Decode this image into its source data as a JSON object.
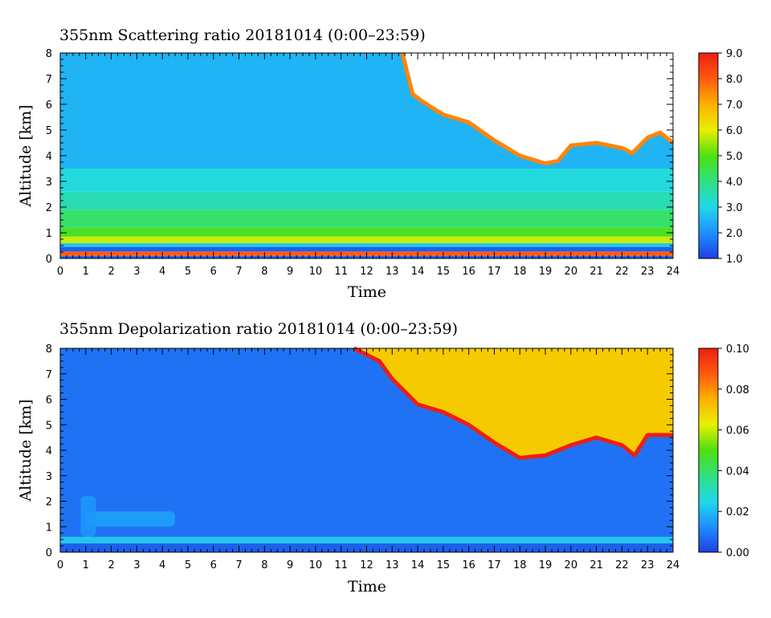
{
  "chart_data": [
    {
      "type": "heatmap",
      "id": "scattering",
      "title": "355nm Scattering ratio  20181014 (0:00–23:59)",
      "xlabel": "Time",
      "ylabel": "Altitude [km]",
      "xlim": [
        0,
        24
      ],
      "ylim": [
        0,
        8
      ],
      "x_ticks": [
        "0",
        "1",
        "2",
        "3",
        "4",
        "5",
        "6",
        "7",
        "8",
        "9",
        "10",
        "11",
        "12",
        "13",
        "14",
        "15",
        "16",
        "17",
        "18",
        "19",
        "20",
        "21",
        "22",
        "23",
        "24"
      ],
      "y_ticks": [
        "0",
        "1",
        "2",
        "3",
        "4",
        "5",
        "6",
        "7",
        "8"
      ],
      "colorbar": {
        "range": [
          1.0,
          9.0
        ],
        "ticks": [
          "1.0",
          "2.0",
          "3.0",
          "4.0",
          "5.0",
          "6.0",
          "7.0",
          "8.0",
          "9.0"
        ],
        "colors": [
          "#1f3fe0",
          "#1f8fff",
          "#20d8e8",
          "#30e080",
          "#50e010",
          "#e8f000",
          "#ffb000",
          "#ff5a10",
          "#ee1e10"
        ]
      },
      "color_bands": [
        {
          "z_top": 0.1,
          "value": 1.5
        },
        {
          "z_top": 0.27,
          "value": 8.0
        },
        {
          "z_top": 0.45,
          "value": 1.4
        },
        {
          "z_top": 0.6,
          "value": 2.8
        },
        {
          "z_top": 0.85,
          "value": 5.8
        },
        {
          "z_top": 1.2,
          "value": 4.8
        },
        {
          "z_top": 1.9,
          "value": 4.2
        },
        {
          "z_top": 2.6,
          "value": 3.5
        },
        {
          "z_top": 3.5,
          "value": 3.1
        },
        {
          "z_top": 8.0,
          "value": 2.5
        }
      ],
      "cloud_region": {
        "value_inside": "above_range",
        "edge_value": 7.5,
        "base_km": [
          [
            13.4,
            8.0
          ],
          [
            13.8,
            6.4
          ],
          [
            14.2,
            6.1
          ],
          [
            15.0,
            5.6
          ],
          [
            16.0,
            5.3
          ],
          [
            17.0,
            4.6
          ],
          [
            18.0,
            4.0
          ],
          [
            19.0,
            3.7
          ],
          [
            19.5,
            3.8
          ],
          [
            20.0,
            4.4
          ],
          [
            21.0,
            4.5
          ],
          [
            22.0,
            4.3
          ],
          [
            22.4,
            4.1
          ],
          [
            23.0,
            4.7
          ],
          [
            23.5,
            4.9
          ],
          [
            24.0,
            4.5
          ]
        ]
      },
      "grid": false,
      "legend": "colorbar-right"
    },
    {
      "type": "heatmap",
      "id": "depolarization",
      "title": "355nm Depolarization ratio  20181014 (0:00–23:59)",
      "xlabel": "Time",
      "ylabel": "Altitude [km]",
      "xlim": [
        0,
        24
      ],
      "ylim": [
        0,
        8
      ],
      "x_ticks": [
        "0",
        "1",
        "2",
        "3",
        "4",
        "5",
        "6",
        "7",
        "8",
        "9",
        "10",
        "11",
        "12",
        "13",
        "14",
        "15",
        "16",
        "17",
        "18",
        "19",
        "20",
        "21",
        "22",
        "23",
        "24"
      ],
      "y_ticks": [
        "0",
        "1",
        "2",
        "3",
        "4",
        "5",
        "6",
        "7",
        "8"
      ],
      "colorbar": {
        "range": [
          0.0,
          0.1
        ],
        "ticks": [
          "0.00",
          "0.02",
          "0.04",
          "0.06",
          "0.08",
          "0.10"
        ],
        "colors": [
          "#1f3fe0",
          "#1f8fff",
          "#20d8e8",
          "#30e080",
          "#50e010",
          "#e8f000",
          "#ffb000",
          "#ff5a10",
          "#ee1e10"
        ]
      },
      "color_bands": [
        {
          "z_top": 0.35,
          "value": 0.005
        },
        {
          "z_top": 0.6,
          "value": 0.022
        },
        {
          "z_top": 8.0,
          "value": 0.008
        }
      ],
      "patches": [
        {
          "x": [
            1.0,
            4.5
          ],
          "z": [
            1.0,
            1.6
          ],
          "value": 0.016
        },
        {
          "x": [
            0.8,
            1.4
          ],
          "z": [
            0.6,
            2.2
          ],
          "value": 0.014
        }
      ],
      "cloud_region": {
        "value_inside": 0.07,
        "edge_value": 0.1,
        "base_km": [
          [
            11.5,
            8.0
          ],
          [
            12.5,
            7.5
          ],
          [
            13.0,
            6.8
          ],
          [
            14.0,
            5.8
          ],
          [
            15.0,
            5.5
          ],
          [
            16.0,
            5.0
          ],
          [
            17.0,
            4.3
          ],
          [
            18.0,
            3.7
          ],
          [
            19.0,
            3.8
          ],
          [
            20.0,
            4.2
          ],
          [
            21.0,
            4.5
          ],
          [
            22.0,
            4.2
          ],
          [
            22.5,
            3.8
          ],
          [
            23.0,
            4.6
          ],
          [
            24.0,
            4.6
          ]
        ]
      },
      "grid": false,
      "legend": "colorbar-right"
    }
  ]
}
